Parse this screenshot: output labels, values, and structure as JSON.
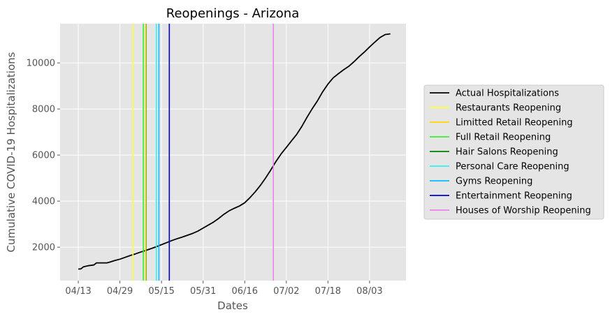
{
  "chart_data": {
    "type": "line",
    "title": "Reopenings - Arizona",
    "xlabel": "Dates",
    "ylabel": "Cumulative COVID-19 Hospitalizations",
    "year": 2020,
    "xlim": [
      "2020-04-06",
      "2020-08-17"
    ],
    "ylim": [
      550,
      11700
    ],
    "xticks": [
      {
        "date": "2020-04-13",
        "label": "04/13"
      },
      {
        "date": "2020-04-29",
        "label": "04/29"
      },
      {
        "date": "2020-05-15",
        "label": "05/15"
      },
      {
        "date": "2020-05-31",
        "label": "05/31"
      },
      {
        "date": "2020-06-16",
        "label": "06/16"
      },
      {
        "date": "2020-07-02",
        "label": "07/02"
      },
      {
        "date": "2020-07-18",
        "label": "07/18"
      },
      {
        "date": "2020-08-03",
        "label": "08/03"
      }
    ],
    "yticks": [
      {
        "value": 2000,
        "label": "2000"
      },
      {
        "value": 4000,
        "label": "4000"
      },
      {
        "value": 6000,
        "label": "6000"
      },
      {
        "value": 8000,
        "label": "8000"
      },
      {
        "value": 10000,
        "label": "10000"
      }
    ],
    "grid": true,
    "background": "#e5e5e5",
    "legend_position": "right",
    "series": [
      {
        "name": "Actual Hospitalizations",
        "color": "#000000",
        "points": [
          [
            "2020-04-13",
            1050
          ],
          [
            "2020-04-14",
            1060
          ],
          [
            "2020-04-15",
            1150
          ],
          [
            "2020-04-17",
            1200
          ],
          [
            "2020-04-19",
            1230
          ],
          [
            "2020-04-20",
            1320
          ],
          [
            "2020-04-22",
            1320
          ],
          [
            "2020-04-24",
            1320
          ],
          [
            "2020-04-25",
            1350
          ],
          [
            "2020-04-27",
            1420
          ],
          [
            "2020-04-29",
            1480
          ],
          [
            "2020-05-01",
            1560
          ],
          [
            "2020-05-03",
            1640
          ],
          [
            "2020-05-05",
            1710
          ],
          [
            "2020-05-07",
            1790
          ],
          [
            "2020-05-09",
            1860
          ],
          [
            "2020-05-11",
            1940
          ],
          [
            "2020-05-13",
            2020
          ],
          [
            "2020-05-15",
            2110
          ],
          [
            "2020-05-17",
            2200
          ],
          [
            "2020-05-19",
            2290
          ],
          [
            "2020-05-21",
            2370
          ],
          [
            "2020-05-23",
            2440
          ],
          [
            "2020-05-25",
            2520
          ],
          [
            "2020-05-27",
            2600
          ],
          [
            "2020-05-29",
            2700
          ],
          [
            "2020-05-31",
            2830
          ],
          [
            "2020-06-02",
            2960
          ],
          [
            "2020-06-04",
            3090
          ],
          [
            "2020-06-06",
            3250
          ],
          [
            "2020-06-08",
            3430
          ],
          [
            "2020-06-10",
            3580
          ],
          [
            "2020-06-12",
            3690
          ],
          [
            "2020-06-14",
            3790
          ],
          [
            "2020-06-16",
            3930
          ],
          [
            "2020-06-18",
            4150
          ],
          [
            "2020-06-20",
            4400
          ],
          [
            "2020-06-22",
            4680
          ],
          [
            "2020-06-24",
            5000
          ],
          [
            "2020-06-26",
            5350
          ],
          [
            "2020-06-28",
            5720
          ],
          [
            "2020-06-30",
            6050
          ],
          [
            "2020-07-02",
            6330
          ],
          [
            "2020-07-04",
            6620
          ],
          [
            "2020-07-06",
            6900
          ],
          [
            "2020-07-08",
            7250
          ],
          [
            "2020-07-10",
            7650
          ],
          [
            "2020-07-12",
            8020
          ],
          [
            "2020-07-14",
            8360
          ],
          [
            "2020-07-16",
            8750
          ],
          [
            "2020-07-18",
            9080
          ],
          [
            "2020-07-20",
            9350
          ],
          [
            "2020-07-22",
            9530
          ],
          [
            "2020-07-24",
            9700
          ],
          [
            "2020-07-26",
            9850
          ],
          [
            "2020-07-28",
            10050
          ],
          [
            "2020-07-30",
            10270
          ],
          [
            "2020-08-01",
            10470
          ],
          [
            "2020-08-03",
            10690
          ],
          [
            "2020-08-05",
            10900
          ],
          [
            "2020-08-07",
            11100
          ],
          [
            "2020-08-09",
            11230
          ],
          [
            "2020-08-11",
            11260
          ]
        ]
      }
    ],
    "vertical_lines": [
      {
        "name": "Restaurants Reopening",
        "date": "2020-05-04",
        "color": "#ffff33"
      },
      {
        "name": "Limitted Retail Reopening",
        "date": "2020-05-08",
        "color": "#ffd700"
      },
      {
        "name": "Full Retail Reopening",
        "date": "2020-05-08",
        "color": "#33ee33"
      },
      {
        "name": "Hair Salons Reopening",
        "date": "2020-05-09",
        "color": "#008000"
      },
      {
        "name": "Personal Care Reopening",
        "date": "2020-05-13",
        "color": "#33eeee"
      },
      {
        "name": "Gyms Reopening",
        "date": "2020-05-14",
        "color": "#00bfff"
      },
      {
        "name": "Entertainment Reopening",
        "date": "2020-05-18",
        "color": "#0000cc"
      },
      {
        "name": "Houses of Worship Reopening",
        "date": "2020-06-27",
        "color": "#ee82ee"
      }
    ],
    "late_draw": [
      "Limitted Retail Reopening"
    ],
    "legend": [
      {
        "label": "Actual Hospitalizations",
        "color": "#000000"
      },
      {
        "label": "Restaurants Reopening",
        "color": "#ffff33"
      },
      {
        "label": "Limitted Retail Reopening",
        "color": "#ffd700"
      },
      {
        "label": "Full Retail Reopening",
        "color": "#33ee33"
      },
      {
        "label": "Hair Salons Reopening",
        "color": "#008000"
      },
      {
        "label": "Personal Care Reopening",
        "color": "#33eeee"
      },
      {
        "label": "Gyms Reopening",
        "color": "#00bfff"
      },
      {
        "label": "Entertainment Reopening",
        "color": "#0000cc"
      },
      {
        "label": "Houses of Worship Reopening",
        "color": "#ee82ee"
      }
    ]
  }
}
